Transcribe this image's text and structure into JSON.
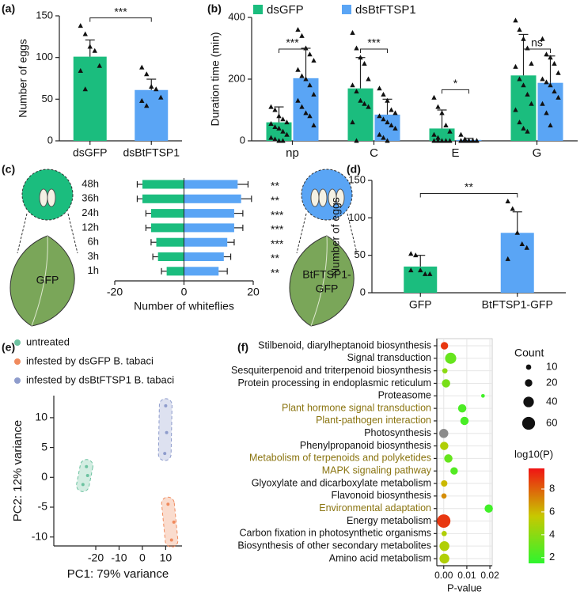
{
  "chart_data": [
    {
      "panel": "(a)",
      "type": "bar",
      "categories": [
        "dsGFP",
        "dsBtFTSP1"
      ],
      "values": [
        101,
        61
      ],
      "errors": [
        20,
        13
      ],
      "points": [
        [
          138,
          128,
          113,
          108,
          90,
          84,
          62
        ],
        [
          88,
          80,
          65,
          62,
          52,
          48,
          42
        ]
      ],
      "colors": [
        "#1bbd7e",
        "#5aa5f5"
      ],
      "ylabel": "Number of eggs",
      "ylim": [
        0,
        150
      ],
      "yticks": [
        0,
        50,
        100,
        150
      ],
      "significance": "***"
    },
    {
      "panel": "(b)",
      "type": "grouped_bar",
      "categories": [
        "np",
        "C",
        "E",
        "G"
      ],
      "series": [
        {
          "name": "dsGFP",
          "color": "#1bbd7e",
          "values": [
            60,
            170,
            40,
            212
          ],
          "errors": [
            50,
            100,
            60,
            133
          ],
          "points": [
            [
              110,
              100,
              80,
              70,
              60,
              55,
              45,
              40,
              30,
              20,
              10,
              5,
              0,
              0
            ],
            [
              350,
              300,
              270,
              250,
              200,
              180,
              160,
              130,
              120,
              110,
              60,
              0
            ],
            [
              140,
              110,
              90,
              50,
              30,
              20,
              10,
              0,
              0,
              0,
              0,
              0
            ],
            [
              390,
              360,
              330,
              300,
              250,
              240,
              200,
              180,
              150,
              120,
              100,
              60,
              40,
              30
            ]
          ]
        },
        {
          "name": "dsBtFTSP1",
          "color": "#5aa5f5",
          "values": [
            203,
            85,
            3,
            188
          ],
          "errors": [
            97,
            50,
            5,
            87
          ],
          "points": [
            [
              360,
              340,
              300,
              280,
              260,
              230,
              210,
              200,
              180,
              150,
              130,
              110,
              90,
              80,
              50
            ],
            [
              170,
              150,
              130,
              100,
              90,
              80,
              70,
              60,
              50,
              40,
              20,
              10,
              0
            ],
            [
              20,
              5,
              0,
              0,
              0,
              0,
              0,
              0,
              0,
              0,
              0,
              0,
              0,
              0
            ],
            [
              330,
              280,
              270,
              250,
              220,
              200,
              190,
              180,
              160,
              140,
              120,
              90,
              50
            ]
          ]
        }
      ],
      "ylabel": "Duration time (min)",
      "ylim": [
        0,
        400
      ],
      "yticks": [
        0,
        200,
        400
      ],
      "significance": [
        "***",
        "***",
        "*",
        "ns"
      ]
    },
    {
      "panel": "(c)",
      "type": "diverging_bar",
      "categories": [
        "48h",
        "36h",
        "24h",
        "12h",
        "6h",
        "3h",
        "1h"
      ],
      "series": [
        {
          "color": "#1bbd7e",
          "values": [
            -12,
            -12,
            -9.5,
            -9.5,
            -8,
            -7.5,
            -5
          ],
          "errors": [
            1.5,
            1.5,
            1.5,
            1.5,
            1.5,
            1.5,
            1.5
          ]
        },
        {
          "color": "#5aa5f5",
          "values": [
            15.5,
            16.5,
            14.5,
            14.5,
            12.5,
            11.5,
            10
          ],
          "errors": [
            3,
            3,
            2.5,
            2.5,
            2,
            2,
            2.5
          ]
        }
      ],
      "leaf_labels": [
        [
          "GFP"
        ],
        [
          "BtFTSP1-",
          "GFP"
        ]
      ],
      "significance": [
        "**",
        "**",
        "***",
        "***",
        "***",
        "**",
        "**"
      ],
      "xlabel": "Number of whiteflies",
      "xlim": [
        -20,
        20
      ],
      "xticks": [
        -20,
        0,
        20
      ]
    },
    {
      "panel": "(d)",
      "type": "bar",
      "categories": [
        "GFP",
        "BtFTSP1-GFP"
      ],
      "values": [
        35,
        80
      ],
      "errors": [
        15,
        28
      ],
      "points": [
        [
          52,
          50,
          30,
          25,
          25,
          30
        ],
        [
          122,
          112,
          80,
          65,
          60,
          45
        ]
      ],
      "colors": [
        "#1bbd7e",
        "#5aa5f5"
      ],
      "ylabel": "Number of eggs",
      "ylim": [
        0,
        150
      ],
      "yticks": [
        0,
        50,
        100,
        150
      ],
      "significance": "**"
    },
    {
      "panel": "(e)",
      "type": "scatter",
      "series": [
        {
          "name": "untreated",
          "color": "#6cc2a0",
          "x": [
            -24,
            -25.5,
            -23.5
          ],
          "y": [
            1.8,
            -1.2,
            0.3
          ]
        },
        {
          "name": "infested by dsGFP B. tabaci",
          "color": "#f08a5d",
          "x": [
            11,
            13.5,
            12.5
          ],
          "y": [
            -4.5,
            -7.5,
            -10.5
          ]
        },
        {
          "name": "infested by dsBtFTSP1 B. tabaci",
          "color": "#8e9ccc",
          "x": [
            10,
            10.4,
            9.6
          ],
          "y": [
            12,
            7.5,
            4
          ]
        }
      ],
      "xlabel": "PC1: 79% variance",
      "ylabel": "PC2: 12% variance",
      "xlim": [
        -38,
        17
      ],
      "xticks": [
        -20,
        -10,
        0,
        10
      ],
      "ylim": [
        -11.5,
        13.7
      ],
      "yticks": [
        -10,
        -5,
        0,
        5,
        10
      ]
    },
    {
      "panel": "(f)",
      "type": "bubble",
      "categories": [
        "Stilbenoid, diarylheptanoid biosynthesis",
        "Signal transduction",
        "Sesquiterpenoid and triterpenoid biosynthesis",
        "Protein processing in endoplasmic reticulum",
        "Proteasome",
        "Plant hormone signal transduction",
        "Plant-pathogen interaction",
        "Photosynthesis",
        "Phenylpropanoid biosynthesis",
        "Metabolism of terpenoids and polyketides",
        "MAPK signaling pathway",
        "Glyoxylate and dicarboxylate metabolism",
        "Flavonoid biosynthesis",
        "Environmental adaptation",
        "Energy metabolism",
        "Carbon fixation in photosynthetic organisms",
        "Biosynthesis of other secondary metabolites",
        "Amino acid metabolism"
      ],
      "category_colors": [
        "#111",
        "#111",
        "#111",
        "#111",
        "#111",
        "#8a7410",
        "#8a7410",
        "#111",
        "#111",
        "#8a7410",
        "#8a7410",
        "#111",
        "#111",
        "#8a7410",
        "#111",
        "#111",
        "#111",
        "#111"
      ],
      "x": [
        0.0003,
        0.003,
        0.0005,
        0.001,
        0.017,
        0.008,
        0.009,
        0,
        0.0002,
        0.002,
        0.0045,
        0.0002,
        0.0001,
        0.0195,
        0,
        0.0002,
        0.0003,
        0.0003
      ],
      "count": [
        20,
        45,
        10,
        25,
        5,
        25,
        25,
        30,
        25,
        25,
        20,
        15,
        10,
        25,
        65,
        10,
        35,
        35
      ],
      "log10_p": [
        9,
        3,
        4,
        3.5,
        2,
        2.3,
        2.2,
        null,
        5,
        3,
        2.5,
        6,
        7,
        2,
        9,
        5,
        5,
        5
      ],
      "na_color": "#8c8c8c",
      "colorscale": [
        "#2ef52e",
        "#c8c800",
        "#f01414"
      ],
      "xlabel": "P-value",
      "xlim": [
        -0.003,
        0.021
      ],
      "xticks": [
        {
          "value": 0,
          "label": "0.00"
        },
        {
          "value": 0.01,
          "label": "0.01"
        },
        {
          "value": 0.02,
          "label": "0.02"
        }
      ],
      "size_title": "Count",
      "size_legend": [
        10,
        20,
        40,
        60
      ],
      "color_title": "log10(P)",
      "color_lim": [
        1.5,
        9.8
      ],
      "color_ticks": [
        2,
        4,
        6,
        8
      ],
      "grid": true
    }
  ]
}
